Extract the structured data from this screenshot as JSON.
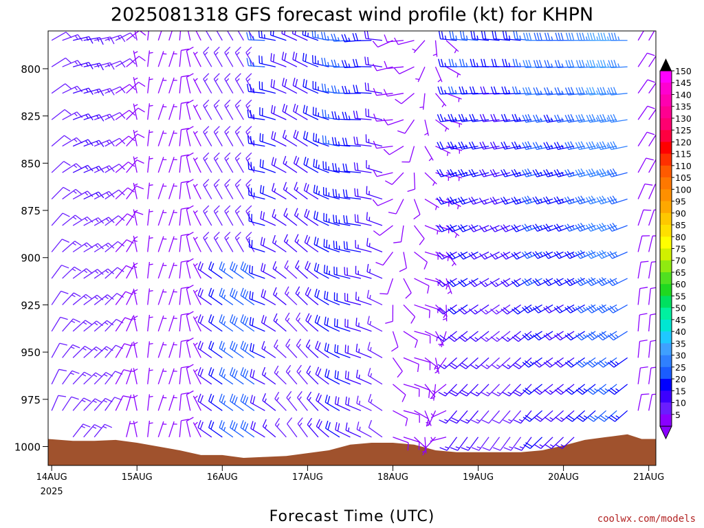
{
  "chart_data": {
    "type": "wind-barb-profile",
    "title": "2025081318 GFS forecast wind profile (kt) for KHPN",
    "xlabel": "Forecast Time (UTC)",
    "y_ticks": [
      800,
      825,
      850,
      875,
      900,
      925,
      950,
      975,
      1000
    ],
    "y_range_hpa": [
      780,
      1010
    ],
    "x_ticks": [
      {
        "label": "14AUG",
        "sub": "2025",
        "hours": 0
      },
      {
        "label": "15AUG",
        "sub": "",
        "hours": 24
      },
      {
        "label": "16AUG",
        "sub": "",
        "hours": 48
      },
      {
        "label": "17AUG",
        "sub": "",
        "hours": 72
      },
      {
        "label": "18AUG",
        "sub": "",
        "hours": 96
      },
      {
        "label": "19AUG",
        "sub": "",
        "hours": 120
      },
      {
        "label": "20AUG",
        "sub": "",
        "hours": 144
      },
      {
        "label": "21AUG",
        "sub": "",
        "hours": 168
      }
    ],
    "x_range_hours": [
      -1,
      170
    ],
    "barb_levels_hpa": [
      785,
      799,
      813,
      827,
      841,
      855,
      869,
      883,
      897,
      911,
      925,
      939,
      953,
      967,
      981,
      995
    ],
    "barb_interval_hours": 3,
    "colorbar": {
      "values": [
        5,
        10,
        15,
        20,
        25,
        30,
        35,
        40,
        45,
        50,
        55,
        60,
        65,
        70,
        75,
        80,
        85,
        90,
        95,
        100,
        105,
        110,
        115,
        120,
        125,
        130,
        135,
        140,
        145,
        150
      ],
      "colors": [
        "#8a00ff",
        "#6a1dff",
        "#3c00ff",
        "#0000ff",
        "#1a5cff",
        "#2f80ff",
        "#3fa0ff",
        "#1fc8ff",
        "#00e6d2",
        "#00f0a0",
        "#00e060",
        "#20d820",
        "#50e020",
        "#90ea10",
        "#d0f000",
        "#ffff00",
        "#ffe000",
        "#ffc800",
        "#ffa800",
        "#ff9000",
        "#ff7800",
        "#ff5a00",
        "#ff3000",
        "#ff0000",
        "#ff0040",
        "#ff0070",
        "#ff0090",
        "#ff00b0",
        "#ff00d0",
        "#ff00ff"
      ]
    },
    "terrain": {
      "color": "#a0522d",
      "surface_pressure": [
        {
          "hours": -1,
          "hpa": 996
        },
        {
          "hours": 6,
          "hpa": 997
        },
        {
          "hours": 12,
          "hpa": 997
        },
        {
          "hours": 18,
          "hpa": 996.5
        },
        {
          "hours": 24,
          "hpa": 998
        },
        {
          "hours": 30,
          "hpa": 1000
        },
        {
          "hours": 36,
          "hpa": 1002
        },
        {
          "hours": 42,
          "hpa": 1004.5
        },
        {
          "hours": 48,
          "hpa": 1004.5
        },
        {
          "hours": 54,
          "hpa": 1006
        },
        {
          "hours": 60,
          "hpa": 1005.5
        },
        {
          "hours": 66,
          "hpa": 1005
        },
        {
          "hours": 72,
          "hpa": 1003.5
        },
        {
          "hours": 78,
          "hpa": 1002
        },
        {
          "hours": 84,
          "hpa": 999
        },
        {
          "hours": 90,
          "hpa": 998
        },
        {
          "hours": 96,
          "hpa": 998
        },
        {
          "hours": 102,
          "hpa": 999
        },
        {
          "hours": 108,
          "hpa": 1002
        },
        {
          "hours": 114,
          "hpa": 1003
        },
        {
          "hours": 120,
          "hpa": 1003
        },
        {
          "hours": 126,
          "hpa": 1003
        },
        {
          "hours": 132,
          "hpa": 1003
        },
        {
          "hours": 138,
          "hpa": 1002
        },
        {
          "hours": 144,
          "hpa": 999.5
        },
        {
          "hours": 150,
          "hpa": 996.5
        },
        {
          "hours": 156,
          "hpa": 995
        },
        {
          "hours": 162,
          "hpa": 993.5
        },
        {
          "hours": 166,
          "hpa": 996
        },
        {
          "hours": 170,
          "hpa": 996
        }
      ]
    }
  },
  "credit": "coolwx.com/models"
}
